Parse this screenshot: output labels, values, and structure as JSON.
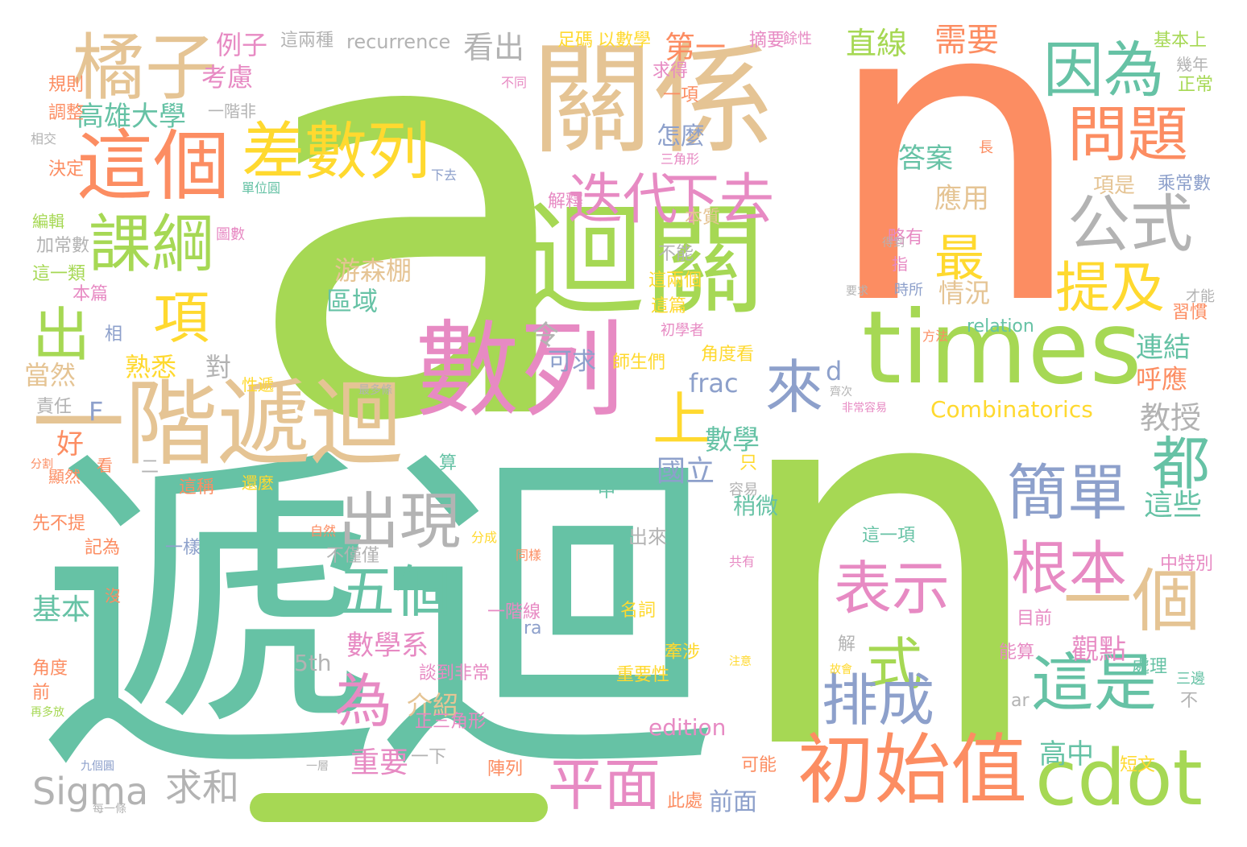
{
  "palette": {
    "green": "#a6d854",
    "orange": "#fc8d62",
    "teal": "#66c2a5",
    "tan": "#e5c494",
    "pink": "#e78ac3",
    "gold": "#ffd92f",
    "gray": "#b3b3b3",
    "blue": "#8da0cb"
  },
  "words": [
    {
      "text": "a",
      "weight": 1.0,
      "color": "green",
      "vertical": false
    },
    {
      "text": "n",
      "weight": 0.95,
      "color": "orange",
      "vertical": false
    },
    {
      "text": "n",
      "weight": 0.95,
      "color": "green",
      "vertical": false
    },
    {
      "text": "_",
      "weight": 0.5,
      "color": "green",
      "vertical": false
    },
    {
      "text": "遞迴",
      "weight": 0.85,
      "color": "teal",
      "vertical": false
    },
    {
      "text": "關係",
      "weight": 0.5,
      "color": "tan",
      "vertical": false
    },
    {
      "text": "迴關",
      "weight": 0.5,
      "color": "green",
      "vertical": false
    },
    {
      "text": "數列",
      "weight": 0.45,
      "color": "pink",
      "vertical": false
    },
    {
      "text": "一階遞迴",
      "weight": 0.4,
      "color": "tan",
      "vertical": false
    },
    {
      "text": "times",
      "weight": 0.4,
      "color": "green",
      "vertical": false
    },
    {
      "text": "這個",
      "weight": 0.3,
      "color": "orange",
      "vertical": false
    },
    {
      "text": "橘子",
      "weight": 0.28,
      "color": "tan",
      "vertical": false
    },
    {
      "text": "差數列",
      "weight": 0.25,
      "color": "gold",
      "vertical": false
    },
    {
      "text": "初始值",
      "weight": 0.3,
      "color": "orange",
      "vertical": false
    },
    {
      "text": "cdot",
      "weight": 0.3,
      "color": "green",
      "vertical": false
    },
    {
      "text": "因為",
      "weight": 0.25,
      "color": "teal",
      "vertical": false
    },
    {
      "text": "問題",
      "weight": 0.25,
      "color": "orange",
      "vertical": false
    },
    {
      "text": "公式",
      "weight": 0.25,
      "color": "gray",
      "vertical": false
    },
    {
      "text": "課綱",
      "weight": 0.22,
      "color": "green",
      "vertical": false
    },
    {
      "text": "迭代",
      "weight": 0.2,
      "color": "pink",
      "vertical": false
    },
    {
      "text": "下去",
      "weight": 0.2,
      "color": "pink",
      "vertical": false
    },
    {
      "text": "項",
      "weight": 0.22,
      "color": "gold",
      "vertical": false
    },
    {
      "text": "出",
      "weight": 0.22,
      "color": "green",
      "vertical": false
    },
    {
      "text": "最",
      "weight": 0.2,
      "color": "gold",
      "vertical": false
    },
    {
      "text": "提及",
      "weight": 0.2,
      "color": "gold",
      "vertical": false
    },
    {
      "text": "來",
      "weight": 0.2,
      "color": "blue",
      "vertical": false
    },
    {
      "text": "上",
      "weight": 0.2,
      "color": "gold",
      "vertical": false
    },
    {
      "text": "簡單",
      "weight": 0.22,
      "color": "blue",
      "vertical": false
    },
    {
      "text": "都",
      "weight": 0.2,
      "color": "teal",
      "vertical": false
    },
    {
      "text": "出現",
      "weight": 0.22,
      "color": "gray",
      "vertical": false
    },
    {
      "text": "五個",
      "weight": 0.2,
      "color": "teal",
      "vertical": false
    },
    {
      "text": "表示",
      "weight": 0.2,
      "color": "pink",
      "vertical": false
    },
    {
      "text": "根本",
      "weight": 0.2,
      "color": "pink",
      "vertical": false
    },
    {
      "text": "一個",
      "weight": 0.22,
      "color": "tan",
      "vertical": false
    },
    {
      "text": "式",
      "weight": 0.2,
      "color": "green",
      "vertical": false
    },
    {
      "text": "為",
      "weight": 0.2,
      "color": "pink",
      "vertical": false
    },
    {
      "text": "排成",
      "weight": 0.2,
      "color": "blue",
      "vertical": false
    },
    {
      "text": "這是",
      "weight": 0.2,
      "color": "teal",
      "vertical": false
    },
    {
      "text": "平面",
      "weight": 0.2,
      "color": "pink",
      "vertical": false
    },
    {
      "text": "Sigma",
      "weight": 0.12,
      "color": "gray",
      "vertical": false
    },
    {
      "text": "求和",
      "weight": 0.12,
      "color": "gray",
      "vertical": false
    },
    {
      "text": "高雄大學",
      "weight": 0.12,
      "color": "teal",
      "vertical": false
    },
    {
      "text": "例子",
      "weight": 0.12,
      "color": "pink",
      "vertical": false
    },
    {
      "text": "考慮",
      "weight": 0.12,
      "color": "pink",
      "vertical": false
    },
    {
      "text": "看出",
      "weight": 0.12,
      "color": "gray",
      "vertical": false
    },
    {
      "text": "第一",
      "weight": 0.12,
      "color": "orange",
      "vertical": false
    },
    {
      "text": "直線",
      "weight": 0.12,
      "color": "green",
      "vertical": false
    },
    {
      "text": "需要",
      "weight": 0.12,
      "color": "orange",
      "vertical": false
    },
    {
      "text": "怎麼",
      "weight": 0.1,
      "color": "blue",
      "vertical": false
    },
    {
      "text": "答案",
      "weight": 0.1,
      "color": "teal",
      "vertical": false
    },
    {
      "text": "應用",
      "weight": 0.1,
      "color": "tan",
      "vertical": false
    },
    {
      "text": "游森棚",
      "weight": 0.1,
      "color": "tan",
      "vertical": false
    },
    {
      "text": "區域",
      "weight": 0.1,
      "color": "teal",
      "vertical": false
    },
    {
      "text": "情況",
      "weight": 0.1,
      "color": "tan",
      "vertical": false
    },
    {
      "text": "熟悉",
      "weight": 0.1,
      "color": "gold",
      "vertical": false
    },
    {
      "text": "對",
      "weight": 0.1,
      "color": "gray",
      "vertical": false
    },
    {
      "text": "令",
      "weight": 0.1,
      "color": "gray",
      "vertical": false
    },
    {
      "text": "可求",
      "weight": 0.08,
      "color": "blue",
      "vertical": false
    },
    {
      "text": "frac",
      "weight": 0.08,
      "color": "blue",
      "vertical": false
    },
    {
      "text": "d",
      "weight": 0.08,
      "color": "blue",
      "vertical": false
    },
    {
      "text": "連結",
      "weight": 0.1,
      "color": "teal",
      "vertical": false
    },
    {
      "text": "呼應",
      "weight": 0.1,
      "color": "orange",
      "vertical": false
    },
    {
      "text": "Combinatorics",
      "weight": 0.08,
      "color": "gold",
      "vertical": false
    },
    {
      "text": "教授",
      "weight": 0.1,
      "color": "gray",
      "vertical": false
    },
    {
      "text": "當然",
      "weight": 0.1,
      "color": "tan",
      "vertical": false
    },
    {
      "text": "F",
      "weight": 0.08,
      "color": "blue",
      "vertical": false
    },
    {
      "text": "好",
      "weight": 0.1,
      "color": "orange",
      "vertical": false
    },
    {
      "text": "數學",
      "weight": 0.08,
      "color": "teal",
      "vertical": false
    },
    {
      "text": "國立",
      "weight": 0.1,
      "color": "blue",
      "vertical": false
    },
    {
      "text": "這些",
      "weight": 0.1,
      "color": "teal",
      "vertical": false
    },
    {
      "text": "稍微",
      "weight": 0.07,
      "color": "teal",
      "vertical": false
    },
    {
      "text": "數學系",
      "weight": 0.1,
      "color": "pink",
      "vertical": false
    },
    {
      "text": "觀點",
      "weight": 0.1,
      "color": "pink",
      "vertical": false
    },
    {
      "text": "介紹",
      "weight": 0.1,
      "color": "tan",
      "vertical": false
    },
    {
      "text": "5th",
      "weight": 0.08,
      "color": "gray",
      "vertical": false
    },
    {
      "text": "edition",
      "weight": 0.08,
      "color": "pink",
      "vertical": false
    },
    {
      "text": "重要",
      "weight": 0.1,
      "color": "pink",
      "vertical": false
    },
    {
      "text": "高中",
      "weight": 0.1,
      "color": "teal",
      "vertical": false
    },
    {
      "text": "前面",
      "weight": 0.08,
      "color": "blue",
      "vertical": false
    },
    {
      "text": "基本",
      "weight": 0.1,
      "color": "teal",
      "vertical": false
    },
    {
      "text": "recurrence",
      "weight": 0.06,
      "color": "gray",
      "vertical": false
    },
    {
      "text": "relation",
      "weight": 0.06,
      "color": "teal",
      "vertical": false
    },
    {
      "text": "這兩種",
      "weight": 0.06,
      "color": "gray",
      "vertical": false
    },
    {
      "text": "以數學",
      "weight": 0.05,
      "color": "gold",
      "vertical": false
    },
    {
      "text": "足碼",
      "weight": 0.05,
      "color": "gold",
      "vertical": false
    },
    {
      "text": "摘要",
      "weight": 0.05,
      "color": "pink",
      "vertical": false
    },
    {
      "text": "基本上",
      "weight": 0.05,
      "color": "green",
      "vertical": false
    },
    {
      "text": "正常",
      "weight": 0.05,
      "color": "green",
      "vertical": false
    },
    {
      "text": "項是",
      "weight": 0.06,
      "color": "tan",
      "vertical": false
    },
    {
      "text": "乘常數",
      "weight": 0.06,
      "color": "blue",
      "vertical": false
    },
    {
      "text": "略有",
      "weight": 0.05,
      "color": "pink",
      "vertical": false
    },
    {
      "text": "指",
      "weight": 0.05,
      "color": "pink",
      "vertical": false
    },
    {
      "text": "習慣",
      "weight": 0.05,
      "color": "orange",
      "vertical": false
    },
    {
      "text": "一項",
      "weight": 0.05,
      "color": "orange",
      "vertical": false
    },
    {
      "text": "求得",
      "weight": 0.05,
      "color": "pink",
      "vertical": false
    },
    {
      "text": "本質",
      "weight": 0.05,
      "color": "tan",
      "vertical": false
    },
    {
      "text": "解釋",
      "weight": 0.05,
      "color": "pink",
      "vertical": false
    },
    {
      "text": "這兩個",
      "weight": 0.05,
      "color": "gold",
      "vertical": false
    },
    {
      "text": "這篇",
      "weight": 0.05,
      "color": "gold",
      "vertical": false
    },
    {
      "text": "不能",
      "weight": 0.05,
      "color": "gray",
      "vertical": false
    },
    {
      "text": "初學者",
      "weight": 0.04,
      "color": "pink",
      "vertical": false
    },
    {
      "text": "師生們",
      "weight": 0.05,
      "color": "gold",
      "vertical": false
    },
    {
      "text": "角度看",
      "weight": 0.05,
      "color": "gold",
      "vertical": false
    },
    {
      "text": "調整",
      "weight": 0.05,
      "color": "orange",
      "vertical": false
    },
    {
      "text": "決定",
      "weight": 0.05,
      "color": "orange",
      "vertical": false
    },
    {
      "text": "規則",
      "weight": 0.05,
      "color": "orange",
      "vertical": false
    },
    {
      "text": "加常數",
      "weight": 0.05,
      "color": "gray",
      "vertical": false
    },
    {
      "text": "這一類",
      "weight": 0.05,
      "color": "green",
      "vertical": false
    },
    {
      "text": "本篇",
      "weight": 0.05,
      "color": "pink",
      "vertical": false
    },
    {
      "text": "責任",
      "weight": 0.05,
      "color": "gray",
      "vertical": false
    },
    {
      "text": "先不提",
      "weight": 0.05,
      "color": "orange",
      "vertical": false
    },
    {
      "text": "記為",
      "weight": 0.05,
      "color": "orange",
      "vertical": false
    },
    {
      "text": "一樣",
      "weight": 0.05,
      "color": "blue",
      "vertical": false
    },
    {
      "text": "角度",
      "weight": 0.05,
      "color": "orange",
      "vertical": false
    },
    {
      "text": "前",
      "weight": 0.05,
      "color": "orange",
      "vertical": false
    },
    {
      "text": "這稱",
      "weight": 0.05,
      "color": "orange",
      "vertical": false
    },
    {
      "text": "一階線",
      "weight": 0.05,
      "color": "pink",
      "vertical": false
    },
    {
      "text": "不僅僅",
      "weight": 0.05,
      "color": "gray",
      "vertical": false
    },
    {
      "text": "名詞",
      "weight": 0.05,
      "color": "gold",
      "vertical": false
    },
    {
      "text": "重要性",
      "weight": 0.05,
      "color": "gold",
      "vertical": false
    },
    {
      "text": "談到非常",
      "weight": 0.05,
      "color": "pink",
      "vertical": false
    },
    {
      "text": "正三角形",
      "weight": 0.05,
      "color": "pink",
      "vertical": false
    },
    {
      "text": "牽涉",
      "weight": 0.05,
      "color": "gold",
      "vertical": false
    },
    {
      "text": "這一項",
      "weight": 0.05,
      "color": "teal",
      "vertical": false
    },
    {
      "text": "中特別",
      "weight": 0.05,
      "color": "pink",
      "vertical": false
    },
    {
      "text": "目前",
      "weight": 0.05,
      "color": "pink",
      "vertical": false
    },
    {
      "text": "能算",
      "weight": 0.05,
      "color": "pink",
      "vertical": false
    },
    {
      "text": "處理",
      "weight": 0.05,
      "color": "teal",
      "vertical": false
    },
    {
      "text": "三邊",
      "weight": 0.04,
      "color": "teal",
      "vertical": false
    },
    {
      "text": "可能",
      "weight": 0.05,
      "color": "orange",
      "vertical": false
    },
    {
      "text": "短文",
      "weight": 0.05,
      "color": "gold",
      "vertical": false
    },
    {
      "text": "陣列",
      "weight": 0.05,
      "color": "orange",
      "vertical": false
    },
    {
      "text": "此處",
      "weight": 0.05,
      "color": "orange",
      "vertical": false
    },
    {
      "text": "出來",
      "weight": 0.05,
      "color": "gray",
      "vertical": false
    },
    {
      "text": "一下",
      "weight": 0.05,
      "color": "gray",
      "vertical": false
    },
    {
      "text": "中",
      "weight": 0.05,
      "color": "teal",
      "vertical": false
    },
    {
      "text": "只",
      "weight": 0.05,
      "color": "gold",
      "vertical": false
    },
    {
      "text": "算",
      "weight": 0.05,
      "color": "teal",
      "vertical": false
    },
    {
      "text": "ra",
      "weight": 0.04,
      "color": "blue",
      "vertical": false
    },
    {
      "text": "ar",
      "weight": 0.04,
      "color": "gray",
      "vertical": false
    },
    {
      "text": "解",
      "weight": 0.04,
      "color": "gray",
      "vertical": false
    },
    {
      "text": "不",
      "weight": 0.04,
      "color": "gray",
      "vertical": false
    },
    {
      "text": "二",
      "weight": 0.04,
      "color": "gray",
      "vertical": false
    },
    {
      "text": "相",
      "weight": 0.04,
      "color": "blue",
      "vertical": false
    },
    {
      "text": "沒",
      "weight": 0.04,
      "color": "orange",
      "vertical": false
    },
    {
      "text": "看",
      "weight": 0.04,
      "color": "orange",
      "vertical": false
    },
    {
      "text": "下去",
      "weight": 0.035,
      "color": "blue",
      "vertical": false
    },
    {
      "text": "三角形",
      "weight": 0.035,
      "color": "pink",
      "vertical": false
    },
    {
      "text": "單位圓",
      "weight": 0.035,
      "color": "teal",
      "vertical": false
    },
    {
      "text": "圖數",
      "weight": 0.035,
      "color": "pink",
      "vertical": false
    },
    {
      "text": "一階非",
      "weight": 0.035,
      "color": "gray",
      "vertical": false
    },
    {
      "text": "不同",
      "weight": 0.03,
      "color": "pink",
      "vertical": false
    },
    {
      "text": "幾年",
      "weight": 0.035,
      "color": "gray",
      "vertical": false
    },
    {
      "text": "才能",
      "weight": 0.03,
      "color": "gray",
      "vertical": false
    },
    {
      "text": "要求",
      "weight": 0.03,
      "color": "gray",
      "vertical": false
    },
    {
      "text": "方法",
      "weight": 0.03,
      "color": "orange",
      "vertical": false
    },
    {
      "text": "性遞",
      "weight": 0.035,
      "color": "gold",
      "vertical": false
    },
    {
      "text": "還麼",
      "weight": 0.035,
      "color": "gold",
      "vertical": false
    },
    {
      "text": "自然",
      "weight": 0.03,
      "color": "orange",
      "vertical": false
    },
    {
      "text": "分成",
      "weight": 0.03,
      "color": "gold",
      "vertical": false
    },
    {
      "text": "同樣",
      "weight": 0.03,
      "color": "orange",
      "vertical": false
    },
    {
      "text": "共有",
      "weight": 0.03,
      "color": "pink",
      "vertical": false
    },
    {
      "text": "容易",
      "weight": 0.03,
      "color": "gray",
      "vertical": false
    },
    {
      "text": "得到",
      "weight": 0.03,
      "color": "gray",
      "vertical": false
    },
    {
      "text": "相交",
      "weight": 0.03,
      "color": "gray",
      "vertical": false
    },
    {
      "text": "編輯",
      "weight": 0.03,
      "color": "green",
      "vertical": false
    },
    {
      "text": "顯然",
      "weight": 0.03,
      "color": "orange",
      "vertical": false
    },
    {
      "text": "分割",
      "weight": 0.03,
      "color": "orange",
      "vertical": false
    },
    {
      "text": "再多放",
      "weight": 0.025,
      "color": "green",
      "vertical": false
    },
    {
      "text": "九個圓",
      "weight": 0.025,
      "color": "blue",
      "vertical": false
    },
    {
      "text": "每一條",
      "weight": 0.025,
      "color": "gray",
      "vertical": false
    },
    {
      "text": "一層",
      "weight": 0.025,
      "color": "gray",
      "vertical": false
    },
    {
      "text": "故會",
      "weight": 0.025,
      "color": "gold",
      "vertical": false
    },
    {
      "text": "注意",
      "weight": 0.025,
      "color": "gold",
      "vertical": false
    },
    {
      "text": "餘性",
      "weight": 0.03,
      "color": "pink",
      "vertical": false
    },
    {
      "text": "最多條",
      "weight": 0.025,
      "color": "gray",
      "vertical": false
    },
    {
      "text": "非常容易",
      "weight": 0.025,
      "color": "pink",
      "vertical": false
    },
    {
      "text": "齊次",
      "weight": 0.025,
      "color": "gray",
      "vertical": false
    },
    {
      "text": "長",
      "weight": 0.03,
      "color": "orange",
      "vertical": false
    },
    {
      "text": "時所",
      "weight": 0.03,
      "color": "blue",
      "vertical": false
    }
  ]
}
